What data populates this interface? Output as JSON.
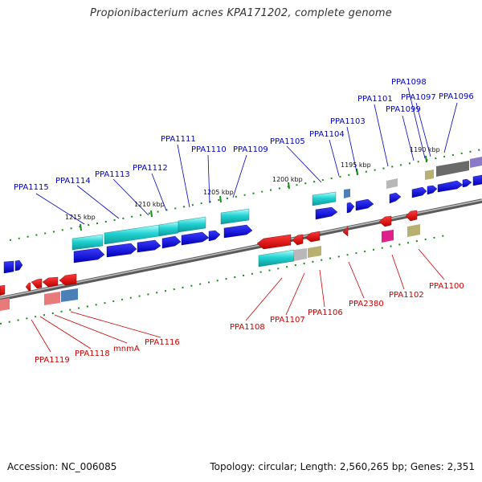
{
  "title": "Propionibacterium acnes KPA171202, complete genome",
  "footer": {
    "accession": "Accession: NC_006085",
    "topology": "Topology: circular; Length: 2,560,265 bp; Genes: 2,351"
  },
  "colors": {
    "forward_label": "#0000c8",
    "reverse_label": "#cc0000",
    "backbone": "#777777",
    "tick": "#1a8a1a"
  },
  "scale_labels": [
    "1215 kbp",
    "1210 kbp",
    "1205 kbp",
    "1200 kbp",
    "1195 kbp",
    "1190 kbp"
  ],
  "forward_labels": [
    "PPA1115",
    "PPA1114",
    "PPA1113",
    "PPA1112",
    "PPA1111",
    "PPA1110",
    "PPA1109",
    "PPA1105",
    "PPA1104",
    "PPA1103",
    "PPA1101",
    "PPA1099",
    "PPA1098",
    "PPA1097",
    "PPA1096"
  ],
  "reverse_labels": [
    "PPA1119",
    "PPA1118",
    "mnmA",
    "PPA1116",
    "PPA1108",
    "PPA1107",
    "PPA1106",
    "PPA2380",
    "PPA1102",
    "PPA1100"
  ]
}
